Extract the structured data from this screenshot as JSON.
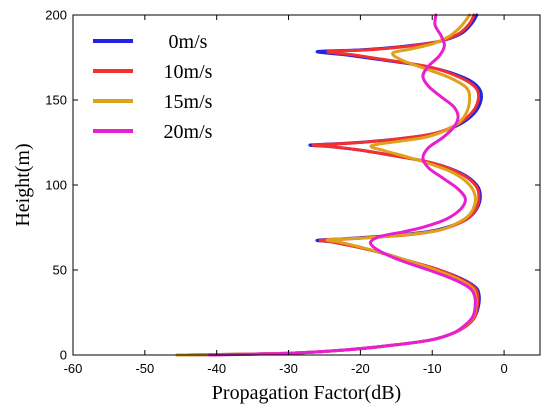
{
  "chart_data": {
    "type": "line",
    "xlabel": "Propagation Factor(dB)",
    "ylabel": "Height(m)",
    "xlim": [
      -60,
      5
    ],
    "ylim": [
      0,
      200
    ],
    "xticks": [
      -60,
      -50,
      -40,
      -30,
      -20,
      -10,
      0
    ],
    "yticks": [
      0,
      50,
      100,
      150,
      200
    ],
    "grid": false,
    "legend": "top-left",
    "series": [
      {
        "name": "0m/s",
        "color": "#2323e6",
        "points": [
          [
            -45.5,
            0
          ],
          [
            -30,
            1
          ],
          [
            -22,
            3
          ],
          [
            -15,
            6
          ],
          [
            -10,
            9
          ],
          [
            -7,
            13
          ],
          [
            -5,
            18
          ],
          [
            -4,
            23
          ],
          [
            -3.5,
            30
          ],
          [
            -3.5,
            36
          ],
          [
            -4,
            40
          ],
          [
            -6,
            45
          ],
          [
            -9,
            50
          ],
          [
            -13,
            55
          ],
          [
            -17,
            60
          ],
          [
            -21,
            64
          ],
          [
            -24,
            66.5
          ],
          [
            -26,
            67.5
          ],
          [
            -22,
            68.5
          ],
          [
            -15,
            70.5
          ],
          [
            -10,
            73
          ],
          [
            -7,
            76.5
          ],
          [
            -5,
            80.5
          ],
          [
            -3.8,
            86
          ],
          [
            -3.3,
            93
          ],
          [
            -3.8,
            100
          ],
          [
            -6,
            107
          ],
          [
            -10,
            113
          ],
          [
            -15,
            117
          ],
          [
            -20,
            120.5
          ],
          [
            -24,
            122.5
          ],
          [
            -27,
            123.5
          ],
          [
            -22,
            124.5
          ],
          [
            -15,
            127
          ],
          [
            -10,
            130
          ],
          [
            -6.5,
            135
          ],
          [
            -4.2,
            142
          ],
          [
            -3.2,
            150
          ],
          [
            -3.5,
            157
          ],
          [
            -5.5,
            163
          ],
          [
            -10,
            169
          ],
          [
            -16,
            173
          ],
          [
            -22,
            176.5
          ],
          [
            -26,
            178.5
          ],
          [
            -20,
            179.5
          ],
          [
            -14,
            181.5
          ],
          [
            -9,
            184.5
          ],
          [
            -6,
            189
          ],
          [
            -4.5,
            195
          ],
          [
            -3.8,
            200
          ]
        ]
      },
      {
        "name": "10m/s",
        "color": "#f23030",
        "points": [
          [
            -45.5,
            0
          ],
          [
            -30,
            1
          ],
          [
            -22,
            3
          ],
          [
            -15,
            6
          ],
          [
            -10,
            9
          ],
          [
            -7,
            13
          ],
          [
            -5,
            18
          ],
          [
            -4,
            23
          ],
          [
            -3.7,
            30
          ],
          [
            -3.7,
            36
          ],
          [
            -4.2,
            40
          ],
          [
            -6.2,
            45
          ],
          [
            -9,
            50
          ],
          [
            -13,
            55
          ],
          [
            -17,
            60
          ],
          [
            -21,
            64
          ],
          [
            -24,
            66.5
          ],
          [
            -25.5,
            67.5
          ],
          [
            -21,
            68.5
          ],
          [
            -14,
            70.5
          ],
          [
            -9.5,
            73
          ],
          [
            -6.8,
            76.5
          ],
          [
            -5,
            80.5
          ],
          [
            -3.9,
            86
          ],
          [
            -3.5,
            93
          ],
          [
            -4,
            100
          ],
          [
            -6.2,
            107
          ],
          [
            -10,
            113
          ],
          [
            -15,
            117
          ],
          [
            -20,
            120.5
          ],
          [
            -24,
            122.5
          ],
          [
            -26.5,
            123.5
          ],
          [
            -21.5,
            124.5
          ],
          [
            -15,
            127
          ],
          [
            -10,
            130
          ],
          [
            -6.8,
            135
          ],
          [
            -4.6,
            142
          ],
          [
            -3.6,
            150
          ],
          [
            -3.9,
            157
          ],
          [
            -6,
            163
          ],
          [
            -10,
            169
          ],
          [
            -15.5,
            173
          ],
          [
            -21,
            176.5
          ],
          [
            -24.5,
            178.5
          ],
          [
            -19,
            179.5
          ],
          [
            -13.5,
            181.5
          ],
          [
            -9,
            184.5
          ],
          [
            -6.3,
            189
          ],
          [
            -4.8,
            195
          ],
          [
            -4.2,
            200
          ]
        ]
      },
      {
        "name": "15m/s",
        "color": "#dfa01a",
        "points": [
          [
            -45.5,
            0
          ],
          [
            -30,
            1
          ],
          [
            -22,
            3
          ],
          [
            -15,
            6
          ],
          [
            -10,
            9
          ],
          [
            -7,
            13
          ],
          [
            -5.2,
            18
          ],
          [
            -4.2,
            23
          ],
          [
            -3.9,
            30
          ],
          [
            -4,
            36
          ],
          [
            -4.6,
            40
          ],
          [
            -6.6,
            45
          ],
          [
            -9.5,
            50
          ],
          [
            -13,
            55
          ],
          [
            -17,
            60
          ],
          [
            -20.5,
            64
          ],
          [
            -23,
            66.5
          ],
          [
            -24.5,
            67.8
          ],
          [
            -19,
            69
          ],
          [
            -13,
            71
          ],
          [
            -9,
            73.5
          ],
          [
            -6.8,
            77
          ],
          [
            -5.2,
            81
          ],
          [
            -4.3,
            86
          ],
          [
            -4,
            93
          ],
          [
            -4.8,
            100
          ],
          [
            -7,
            107
          ],
          [
            -10,
            112
          ],
          [
            -13.5,
            116.5
          ],
          [
            -16.5,
            120
          ],
          [
            -18.5,
            123
          ],
          [
            -15,
            125.5
          ],
          [
            -11,
            128
          ],
          [
            -8.5,
            131.5
          ],
          [
            -6.5,
            136
          ],
          [
            -5.3,
            142
          ],
          [
            -4.8,
            150
          ],
          [
            -5.2,
            157
          ],
          [
            -7.5,
            163
          ],
          [
            -11,
            168.5
          ],
          [
            -14,
            173
          ],
          [
            -15.5,
            177.5
          ],
          [
            -13,
            180
          ],
          [
            -10,
            183
          ],
          [
            -7.8,
            187
          ],
          [
            -6.3,
            192
          ],
          [
            -5.3,
            197
          ],
          [
            -4.8,
            200
          ]
        ]
      },
      {
        "name": "20m/s",
        "color": "#e81ed0",
        "points": [
          [
            -41,
            0
          ],
          [
            -30,
            1
          ],
          [
            -22,
            3
          ],
          [
            -15,
            6
          ],
          [
            -10,
            9
          ],
          [
            -7,
            13
          ],
          [
            -5.3,
            18
          ],
          [
            -4.3,
            23
          ],
          [
            -4,
            30
          ],
          [
            -4.2,
            36
          ],
          [
            -5,
            40
          ],
          [
            -7.3,
            45
          ],
          [
            -10.5,
            50
          ],
          [
            -14,
            55
          ],
          [
            -16.8,
            60
          ],
          [
            -18.3,
            64
          ],
          [
            -18.5,
            67
          ],
          [
            -17,
            70
          ],
          [
            -14,
            72.5
          ],
          [
            -11,
            75.5
          ],
          [
            -8,
            80
          ],
          [
            -6,
            86
          ],
          [
            -5.4,
            92
          ],
          [
            -6.5,
            98
          ],
          [
            -8.5,
            104
          ],
          [
            -10.5,
            110
          ],
          [
            -11.3,
            116
          ],
          [
            -10.5,
            122
          ],
          [
            -8.5,
            128
          ],
          [
            -7,
            134
          ],
          [
            -6.4,
            140
          ],
          [
            -7,
            146
          ],
          [
            -8.8,
            152
          ],
          [
            -10.5,
            158
          ],
          [
            -11.3,
            164
          ],
          [
            -10.5,
            170
          ],
          [
            -9,
            176
          ],
          [
            -8.3,
            182
          ],
          [
            -8.8,
            188
          ],
          [
            -9.6,
            194
          ],
          [
            -9.5,
            200
          ]
        ]
      }
    ]
  }
}
